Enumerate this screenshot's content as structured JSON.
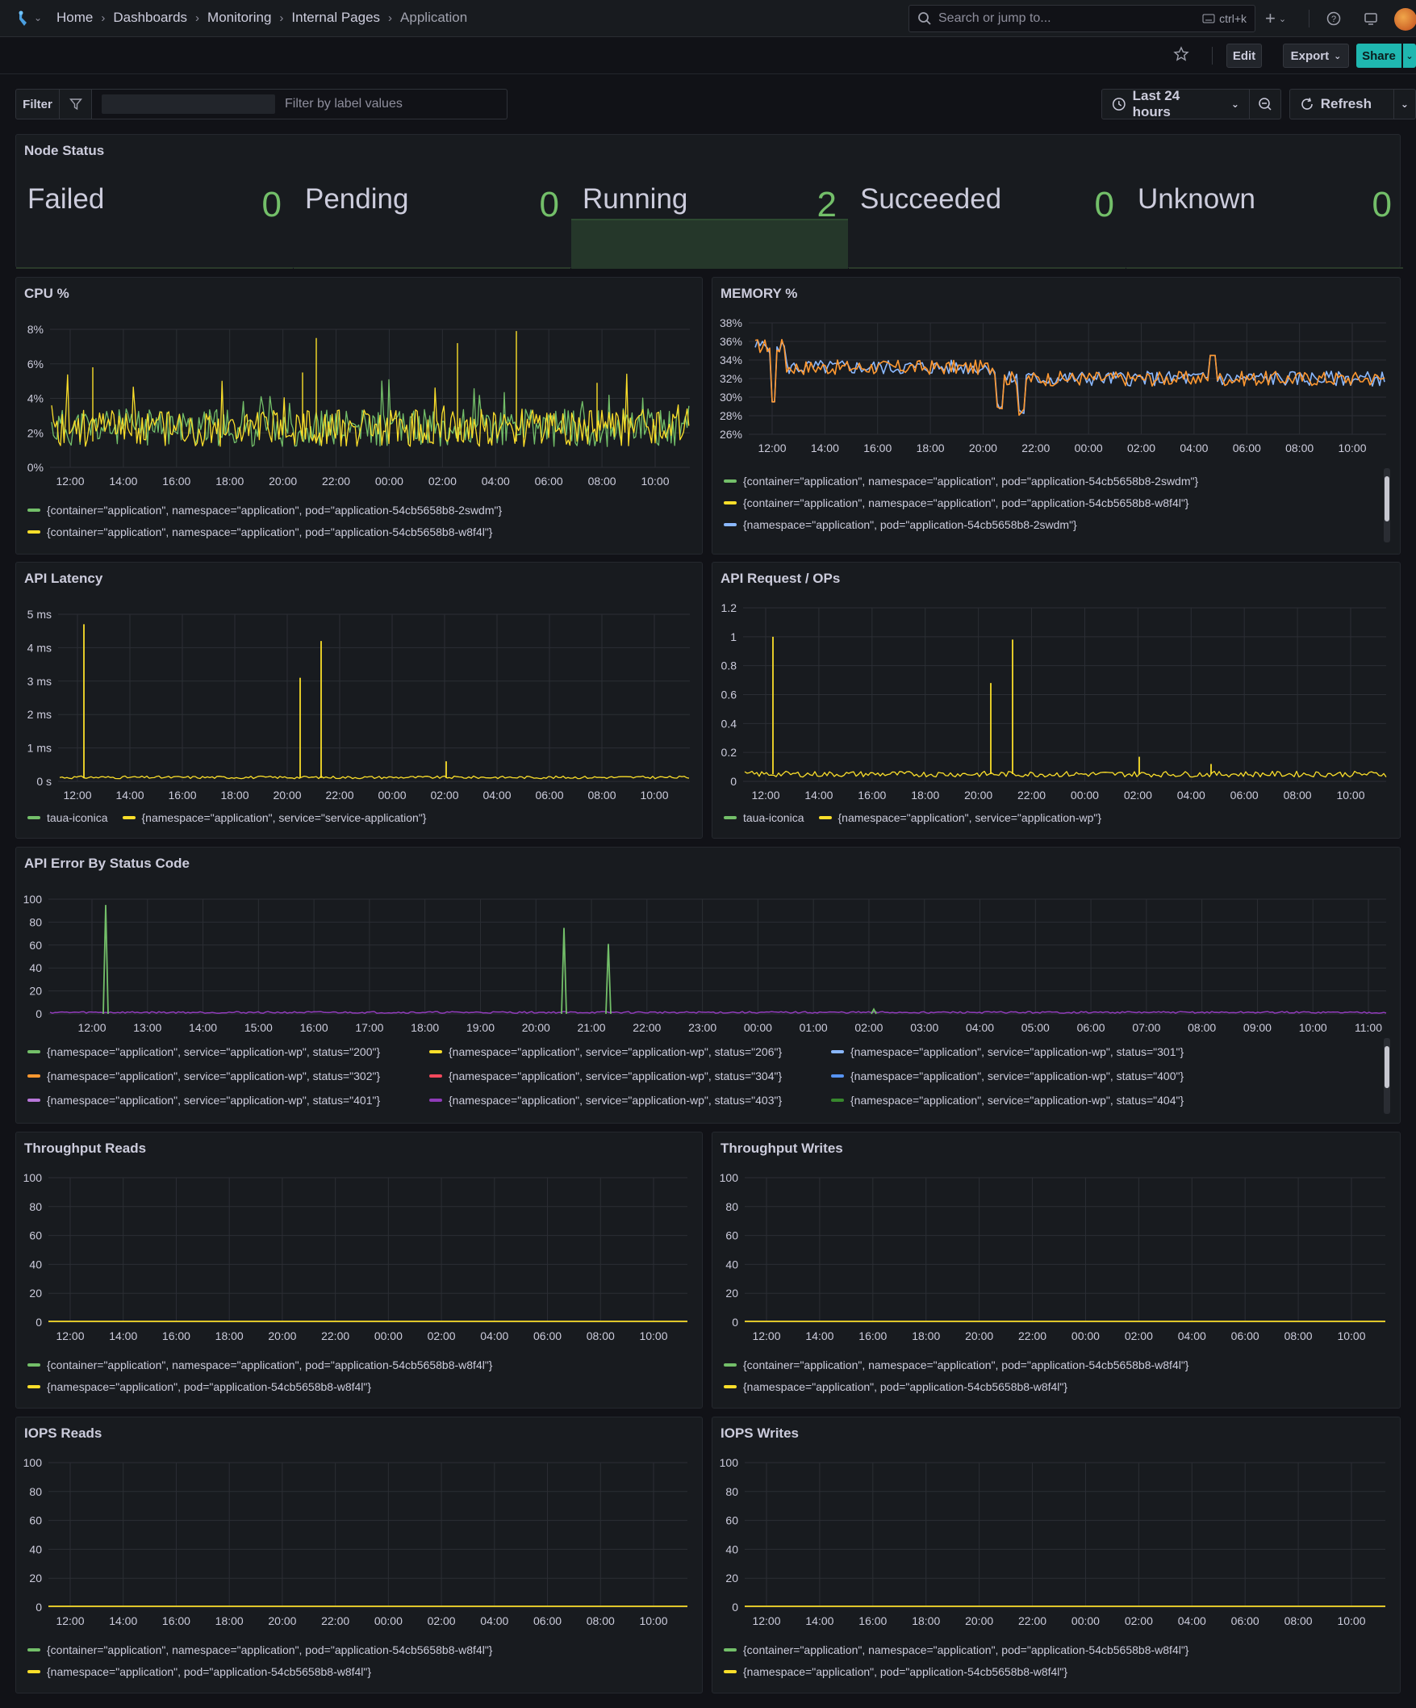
{
  "breadcrumb": [
    "Home",
    "Dashboards",
    "Monitoring",
    "Internal Pages",
    "Application"
  ],
  "search": {
    "placeholder": "Search or jump to...",
    "shortcut": "ctrl+k"
  },
  "actions": {
    "edit": "Edit",
    "export": "Export",
    "share": "Share"
  },
  "filter": {
    "label": "Filter",
    "placeholder": "Filter by label values"
  },
  "time": {
    "range": "Last 24 hours",
    "refresh": "Refresh"
  },
  "colors": {
    "green": "#73bf69",
    "yellow": "#fade2a",
    "blue": "#8ab8ff",
    "orange": "#ff9830",
    "red": "#f2495c",
    "blue2": "#5794f2",
    "purple": "#b877d9",
    "purple2": "#8f3bb8",
    "green2": "#37872d"
  },
  "node_status": {
    "title": "Node Status",
    "items": [
      {
        "name": "Failed",
        "value": "0"
      },
      {
        "name": "Pending",
        "value": "0"
      },
      {
        "name": "Running",
        "value": "2"
      },
      {
        "name": "Succeeded",
        "value": "0"
      },
      {
        "name": "Unknown",
        "value": "0"
      }
    ]
  },
  "panels": {
    "cpu": {
      "title": "CPU %",
      "yticks": [
        "8%",
        "6%",
        "4%",
        "2%",
        "0%"
      ],
      "xticks": [
        "12:00",
        "14:00",
        "16:00",
        "18:00",
        "20:00",
        "22:00",
        "00:00",
        "02:00",
        "04:00",
        "06:00",
        "08:00",
        "10:00"
      ],
      "legend": [
        "{container=\"application\", namespace=\"application\", pod=\"application-54cb5658b8-2swdm\"}",
        "{container=\"application\", namespace=\"application\", pod=\"application-54cb5658b8-w8f4l\"}"
      ]
    },
    "memory": {
      "title": "MEMORY %",
      "yticks": [
        "38%",
        "36%",
        "34%",
        "32%",
        "30%",
        "28%",
        "26%"
      ],
      "xticks": [
        "12:00",
        "14:00",
        "16:00",
        "18:00",
        "20:00",
        "22:00",
        "00:00",
        "02:00",
        "04:00",
        "06:00",
        "08:00",
        "10:00"
      ],
      "legend": [
        "{container=\"application\", namespace=\"application\", pod=\"application-54cb5658b8-2swdm\"}",
        "{container=\"application\", namespace=\"application\", pod=\"application-54cb5658b8-w8f4l\"}",
        "{namespace=\"application\", pod=\"application-54cb5658b8-2swdm\"}"
      ]
    },
    "latency": {
      "title": "API Latency",
      "yticks": [
        "5 ms",
        "4 ms",
        "3 ms",
        "2 ms",
        "1 ms",
        "0 s"
      ],
      "xticks": [
        "12:00",
        "14:00",
        "16:00",
        "18:00",
        "20:00",
        "22:00",
        "00:00",
        "02:00",
        "04:00",
        "06:00",
        "08:00",
        "10:00"
      ],
      "legend": [
        "taua-iconica",
        "{namespace=\"application\", service=\"service-application\"}"
      ]
    },
    "requests": {
      "title": "API Request / OPs",
      "yticks": [
        "1.2",
        "1",
        "0.8",
        "0.6",
        "0.4",
        "0.2",
        "0"
      ],
      "xticks": [
        "12:00",
        "14:00",
        "16:00",
        "18:00",
        "20:00",
        "22:00",
        "00:00",
        "02:00",
        "04:00",
        "06:00",
        "08:00",
        "10:00"
      ],
      "legend": [
        "taua-iconica",
        "{namespace=\"application\", service=\"application-wp\"}"
      ]
    },
    "errors": {
      "title": "API Error By Status Code",
      "yticks": [
        "100",
        "80",
        "60",
        "40",
        "20",
        "0"
      ],
      "xticks": [
        "12:00",
        "13:00",
        "14:00",
        "15:00",
        "16:00",
        "17:00",
        "18:00",
        "19:00",
        "20:00",
        "21:00",
        "22:00",
        "23:00",
        "00:00",
        "01:00",
        "02:00",
        "03:00",
        "04:00",
        "05:00",
        "06:00",
        "07:00",
        "08:00",
        "09:00",
        "10:00",
        "11:00"
      ],
      "legend": [
        "{namespace=\"application\", service=\"application-wp\", status=\"200\"}",
        "{namespace=\"application\", service=\"application-wp\", status=\"206\"}",
        "{namespace=\"application\", service=\"application-wp\", status=\"301\"}",
        "{namespace=\"application\", service=\"application-wp\", status=\"302\"}",
        "{namespace=\"application\", service=\"application-wp\", status=\"304\"}",
        "{namespace=\"application\", service=\"application-wp\", status=\"400\"}",
        "{namespace=\"application\", service=\"application-wp\", status=\"401\"}",
        "{namespace=\"application\", service=\"application-wp\", status=\"403\"}",
        "{namespace=\"application\", service=\"application-wp\", status=\"404\"}"
      ]
    },
    "tr": {
      "title": "Throughput Reads",
      "yticks": [
        "100",
        "80",
        "60",
        "40",
        "20",
        "0"
      ],
      "xticks": [
        "12:00",
        "14:00",
        "16:00",
        "18:00",
        "20:00",
        "22:00",
        "00:00",
        "02:00",
        "04:00",
        "06:00",
        "08:00",
        "10:00"
      ],
      "legend": [
        "{container=\"application\", namespace=\"application\", pod=\"application-54cb5658b8-w8f4l\"}",
        "{namespace=\"application\", pod=\"application-54cb5658b8-w8f4l\"}"
      ]
    },
    "tw": {
      "title": "Throughput Writes",
      "yticks": [
        "100",
        "80",
        "60",
        "40",
        "20",
        "0"
      ],
      "xticks": [
        "12:00",
        "14:00",
        "16:00",
        "18:00",
        "20:00",
        "22:00",
        "00:00",
        "02:00",
        "04:00",
        "06:00",
        "08:00",
        "10:00"
      ],
      "legend": [
        "{container=\"application\", namespace=\"application\", pod=\"application-54cb5658b8-w8f4l\"}",
        "{namespace=\"application\", pod=\"application-54cb5658b8-w8f4l\"}"
      ]
    },
    "ir": {
      "title": "IOPS Reads",
      "yticks": [
        "100",
        "80",
        "60",
        "40",
        "20",
        "0"
      ],
      "xticks": [
        "12:00",
        "14:00",
        "16:00",
        "18:00",
        "20:00",
        "22:00",
        "00:00",
        "02:00",
        "04:00",
        "06:00",
        "08:00",
        "10:00"
      ],
      "legend": [
        "{container=\"application\", namespace=\"application\", pod=\"application-54cb5658b8-w8f4l\"}",
        "{namespace=\"application\", pod=\"application-54cb5658b8-w8f4l\"}"
      ]
    },
    "iw": {
      "title": "IOPS Writes",
      "yticks": [
        "100",
        "80",
        "60",
        "40",
        "20",
        "0"
      ],
      "xticks": [
        "12:00",
        "14:00",
        "16:00",
        "18:00",
        "20:00",
        "22:00",
        "00:00",
        "02:00",
        "04:00",
        "06:00",
        "08:00",
        "10:00"
      ],
      "legend": [
        "{container=\"application\", namespace=\"application\", pod=\"application-54cb5658b8-w8f4l\"}",
        "{namespace=\"application\", pod=\"application-54cb5658b8-w8f4l\"}"
      ]
    }
  }
}
